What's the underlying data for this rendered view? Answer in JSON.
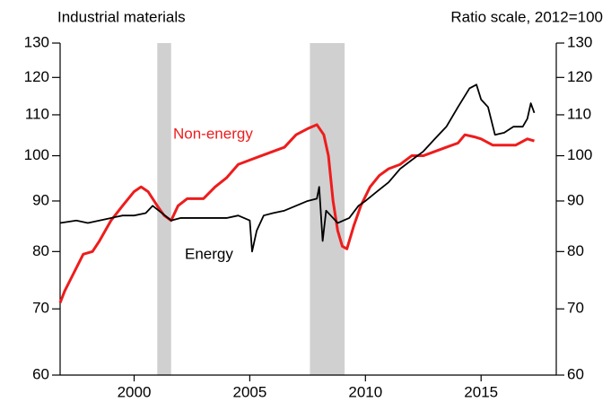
{
  "chart_data": {
    "type": "line",
    "title": "Industrial materials",
    "subtitle": "Ratio scale, 2012=100",
    "xlim": [
      1996.8,
      2018.25
    ],
    "xticks": [
      2000,
      2005,
      2010,
      2015
    ],
    "ylim": [
      60,
      130
    ],
    "yticks": [
      60,
      70,
      80,
      90,
      100,
      110,
      120,
      130
    ],
    "y2lim": [
      60,
      130
    ],
    "y2ticks": [
      60,
      70,
      80,
      90,
      100,
      110,
      120,
      130
    ],
    "log_scale": true,
    "shaded_periods": [
      [
        2001.0,
        2001.6
      ],
      [
        2007.6,
        2009.1
      ]
    ],
    "shade_color": "#d0d0d0",
    "series": [
      {
        "name": "Non-energy",
        "color": "#ee1c1c",
        "x": [
          1996.8,
          1997.0,
          1997.5,
          1997.8,
          1998.2,
          1998.5,
          1999.0,
          1999.5,
          2000.0,
          2000.3,
          2000.6,
          2001.0,
          2001.3,
          2001.6,
          2001.9,
          2002.3,
          2003.0,
          2003.5,
          2004.0,
          2004.5,
          2005.0,
          2005.5,
          2006.0,
          2006.5,
          2007.0,
          2007.5,
          2007.9,
          2008.2,
          2008.4,
          2008.6,
          2008.8,
          2009.0,
          2009.2,
          2009.5,
          2009.8,
          2010.2,
          2010.6,
          2011.0,
          2011.5,
          2012.0,
          2012.5,
          2013.0,
          2013.5,
          2014.0,
          2014.3,
          2014.7,
          2015.0,
          2015.5,
          2016.0,
          2016.5,
          2017.0,
          2017.3
        ],
        "values": [
          71,
          73,
          77,
          79.5,
          80,
          82,
          86,
          89,
          92,
          93,
          92,
          89,
          87,
          86,
          89,
          90.5,
          90.5,
          93,
          95,
          98,
          99,
          100,
          101,
          102,
          105,
          106.5,
          107.5,
          105,
          100,
          90,
          84,
          81,
          80.5,
          85,
          89,
          93,
          95.5,
          97,
          98,
          100,
          100,
          101,
          102,
          103,
          105,
          104.5,
          104,
          102.5,
          102.5,
          102.5,
          104,
          103.5
        ]
      },
      {
        "name": "Energy",
        "color": "#000000",
        "x": [
          1996.8,
          1997.5,
          1998.0,
          1998.5,
          1999.0,
          1999.5,
          2000.0,
          2000.5,
          2000.8,
          2001.2,
          2001.6,
          2002.0,
          2003.0,
          2004.0,
          2004.5,
          2005.0,
          2005.1,
          2005.3,
          2005.6,
          2006.0,
          2006.5,
          2007.0,
          2007.5,
          2007.9,
          2008.0,
          2008.15,
          2008.3,
          2008.5,
          2008.8,
          2009.3,
          2009.7,
          2010.0,
          2010.5,
          2011.0,
          2011.5,
          2012.0,
          2012.5,
          2013.0,
          2013.5,
          2014.0,
          2014.5,
          2014.8,
          2015.0,
          2015.3,
          2015.6,
          2016.0,
          2016.4,
          2016.8,
          2017.0,
          2017.15,
          2017.3
        ],
        "values": [
          85.5,
          86,
          85.5,
          86,
          86.5,
          87,
          87,
          87.5,
          89,
          87.5,
          86,
          86.5,
          86.5,
          86.5,
          87,
          86,
          80,
          84,
          87,
          87.5,
          88,
          89,
          90,
          90.5,
          93,
          82,
          88,
          87,
          85.5,
          86.5,
          89,
          90,
          92,
          94,
          97,
          99,
          101,
          104,
          107,
          112,
          117,
          118,
          114,
          112,
          105,
          105.5,
          107,
          107,
          109,
          113,
          110.5
        ]
      }
    ]
  }
}
